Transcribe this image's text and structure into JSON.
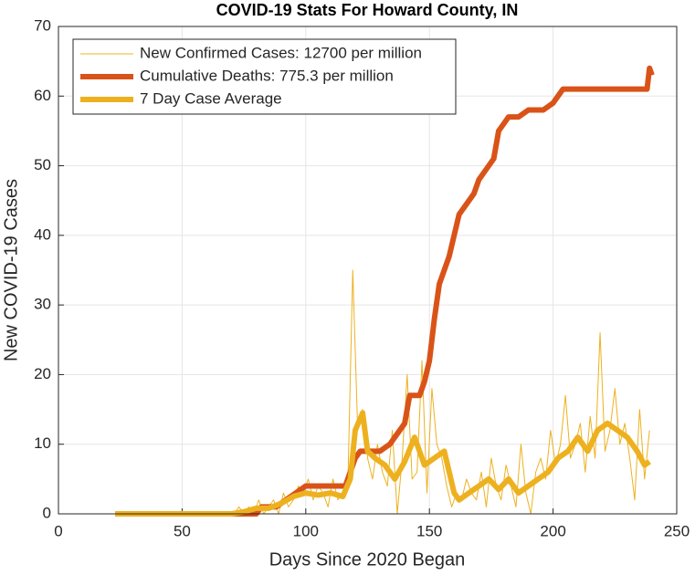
{
  "chart_data": {
    "type": "line",
    "title": "COVID-19 Stats For Howard County, IN",
    "x_label": "Days Since 2020 Began",
    "y_label": "New COVID-19 Cases",
    "xlim": [
      0,
      250
    ],
    "xticks": [
      0,
      50,
      100,
      150,
      200,
      250
    ],
    "ylim": [
      0,
      70
    ],
    "yticks": [
      0,
      10,
      20,
      30,
      40,
      50,
      60,
      70
    ],
    "grid": true,
    "legend": "northwest",
    "series": [
      {
        "name": "New Confirmed Cases: 12700 per million",
        "color": "#EDB120",
        "linewidth": 1,
        "x": [
          23,
          25,
          27,
          29,
          31,
          33,
          35,
          37,
          39,
          41,
          43,
          45,
          47,
          49,
          51,
          53,
          55,
          57,
          59,
          61,
          63,
          65,
          67,
          69,
          71,
          73,
          75,
          77,
          79,
          81,
          83,
          85,
          87,
          89,
          91,
          93,
          95,
          97,
          99,
          101,
          103,
          105,
          107,
          109,
          111,
          113,
          115,
          117,
          119,
          121,
          123,
          125,
          127,
          129,
          131,
          133,
          135,
          137,
          139,
          141,
          143,
          145,
          147,
          149,
          151,
          153,
          155,
          157,
          159,
          161,
          163,
          165,
          167,
          169,
          171,
          173,
          175,
          177,
          179,
          181,
          183,
          185,
          187,
          189,
          191,
          193,
          195,
          197,
          199,
          201,
          203,
          205,
          207,
          209,
          211,
          213,
          215,
          217,
          219,
          221,
          223,
          225,
          227,
          229,
          231,
          233,
          235,
          237,
          239
        ],
        "values": [
          0,
          0,
          0,
          0,
          0,
          0,
          0,
          0,
          0,
          0,
          0,
          0,
          0,
          0,
          0,
          0,
          0,
          0,
          0,
          0,
          0,
          0,
          0,
          0,
          0,
          1,
          0,
          1,
          0,
          2,
          0,
          1,
          2,
          0,
          3,
          1,
          2,
          4,
          3,
          5,
          2,
          4,
          3,
          1,
          5,
          2,
          3,
          4,
          35,
          12,
          15,
          8,
          5,
          10,
          6,
          4,
          12,
          0,
          8,
          20,
          5,
          6,
          22,
          3,
          18,
          10,
          8,
          4,
          1,
          3,
          2,
          5,
          3,
          2,
          6,
          1,
          8,
          4,
          2,
          7,
          4,
          1,
          10,
          3,
          0,
          6,
          8,
          5,
          12,
          7,
          10,
          17,
          8,
          10,
          13,
          6,
          14,
          8,
          26,
          9,
          12,
          18,
          10,
          13,
          8,
          2,
          15,
          5,
          12
        ]
      },
      {
        "name": "Cumulative Deaths: 775.3 per million",
        "color": "#D95319",
        "linewidth": 6,
        "x": [
          23,
          80,
          82,
          88,
          92,
          96,
          100,
          116,
          120,
          122,
          130,
          134,
          138,
          140,
          142,
          146,
          148,
          150,
          152,
          154,
          156,
          158,
          160,
          162,
          164,
          166,
          168,
          170,
          172,
          174,
          176,
          178,
          180,
          182,
          184,
          186,
          190,
          196,
          200,
          202,
          204,
          206,
          230,
          238,
          239,
          240
        ],
        "values": [
          0,
          0,
          1,
          1,
          2,
          3,
          4,
          4,
          8,
          9,
          9,
          10,
          12,
          13,
          17,
          17,
          19,
          22,
          28,
          33,
          35,
          37,
          40,
          43,
          44,
          45,
          46,
          48,
          49,
          50,
          51,
          55,
          56,
          57,
          57,
          57,
          58,
          58,
          59,
          60,
          61,
          61,
          61,
          61,
          64,
          63
        ]
      },
      {
        "name": "7 Day Case Average",
        "color": "#EDB120",
        "linewidth": 6,
        "x": [
          23,
          30,
          40,
          50,
          60,
          70,
          75,
          80,
          85,
          90,
          95,
          100,
          105,
          110,
          115,
          118,
          120,
          123,
          125,
          128,
          132,
          136,
          140,
          144,
          148,
          152,
          156,
          158,
          160,
          162,
          166,
          170,
          174,
          178,
          182,
          186,
          190,
          194,
          198,
          202,
          206,
          210,
          214,
          218,
          222,
          226,
          230,
          234,
          237,
          239
        ],
        "values": [
          0,
          0,
          0,
          0,
          0,
          0,
          0.3,
          0.8,
          0.8,
          1.5,
          2.5,
          3,
          2.7,
          3,
          2.5,
          5,
          12,
          14.5,
          9,
          8,
          7,
          5,
          7.5,
          11,
          7,
          8,
          9,
          6,
          3,
          2,
          3,
          4,
          5,
          3.5,
          5,
          3,
          4,
          5,
          6,
          8,
          9,
          11,
          9,
          12,
          13,
          12,
          11,
          9,
          7,
          7.5
        ]
      }
    ]
  }
}
